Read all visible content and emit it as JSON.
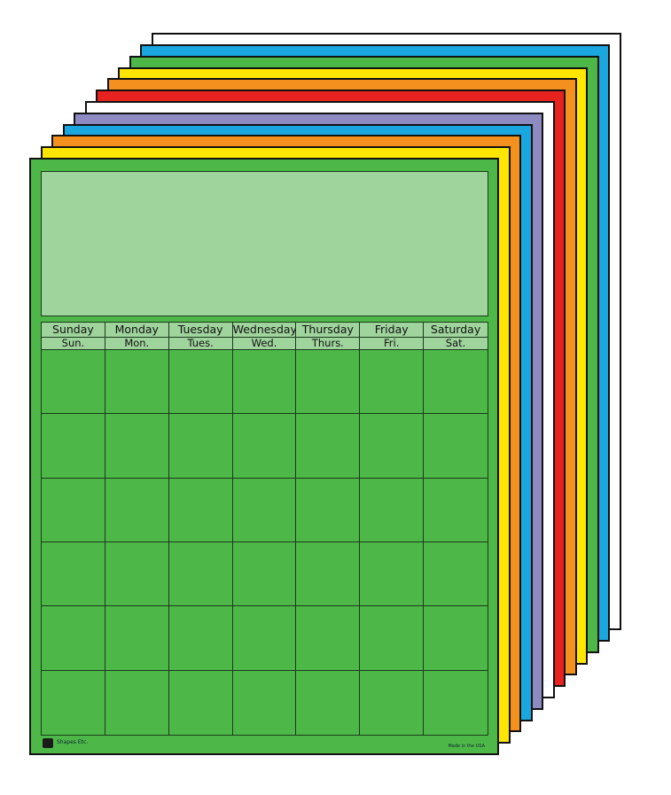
{
  "back_sheets": [
    {
      "color": "#ffffff"
    },
    {
      "color": "#1aa6df"
    },
    {
      "color": "#4db848"
    },
    {
      "color": "#ffe600"
    },
    {
      "color": "#f4901e"
    },
    {
      "color": "#e8231f"
    },
    {
      "color": "#ffffff"
    },
    {
      "color": "#8e8bc3"
    },
    {
      "color": "#1aa6df"
    },
    {
      "color": "#f4901e"
    },
    {
      "color": "#ffe600"
    }
  ],
  "front_sheet": {
    "color": "#4db848",
    "title_box_color": "#9fd49d"
  },
  "calendar": {
    "days": [
      "Sunday",
      "Monday",
      "Tuesday",
      "Wednesday",
      "Thursday",
      "Friday",
      "Saturday"
    ],
    "days_short": [
      "Sun.",
      "Mon.",
      "Tues.",
      "Wed.",
      "Thurs.",
      "Fri.",
      "Sat."
    ],
    "weeks": 6
  },
  "footer": {
    "brand": "Shapes Etc.",
    "made_in": "Made in the USA"
  }
}
